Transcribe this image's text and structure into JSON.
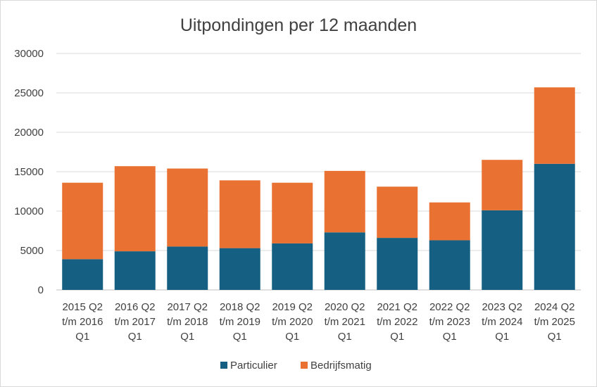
{
  "chart_data": {
    "type": "bar",
    "stacked": true,
    "title": "Uitpondingen per 12 maanden",
    "xlabel": "",
    "ylabel": "",
    "ylim": [
      0,
      30000
    ],
    "yticks": [
      0,
      5000,
      10000,
      15000,
      20000,
      25000,
      30000
    ],
    "grid": true,
    "legend_position": "bottom",
    "categories": [
      [
        "2015 Q2",
        "t/m 2016",
        "Q1"
      ],
      [
        "2016 Q2",
        "t/m 2017",
        "Q1"
      ],
      [
        "2017 Q2",
        "t/m 2018",
        "Q1"
      ],
      [
        "2018 Q2",
        "t/m 2019",
        "Q1"
      ],
      [
        "2019 Q2",
        "t/m 2020",
        "Q1"
      ],
      [
        "2020 Q2",
        "t/m 2021",
        "Q1"
      ],
      [
        "2021 Q2",
        "t/m 2022",
        "Q1"
      ],
      [
        "2022 Q2",
        "t/m 2023",
        "Q1"
      ],
      [
        "2023 Q2",
        "t/m 2024",
        "Q1"
      ],
      [
        "2024 Q2",
        "t/m 2025",
        "Q1"
      ]
    ],
    "series": [
      {
        "name": "Particulier",
        "color": "#156082",
        "values": [
          3900,
          4900,
          5500,
          5300,
          5900,
          7300,
          6600,
          6300,
          10100,
          16000
        ]
      },
      {
        "name": "Bedrijfsmatig",
        "color": "#E97132",
        "values": [
          9700,
          10800,
          9900,
          8600,
          7700,
          7800,
          6500,
          4800,
          6400,
          9700
        ]
      }
    ]
  }
}
